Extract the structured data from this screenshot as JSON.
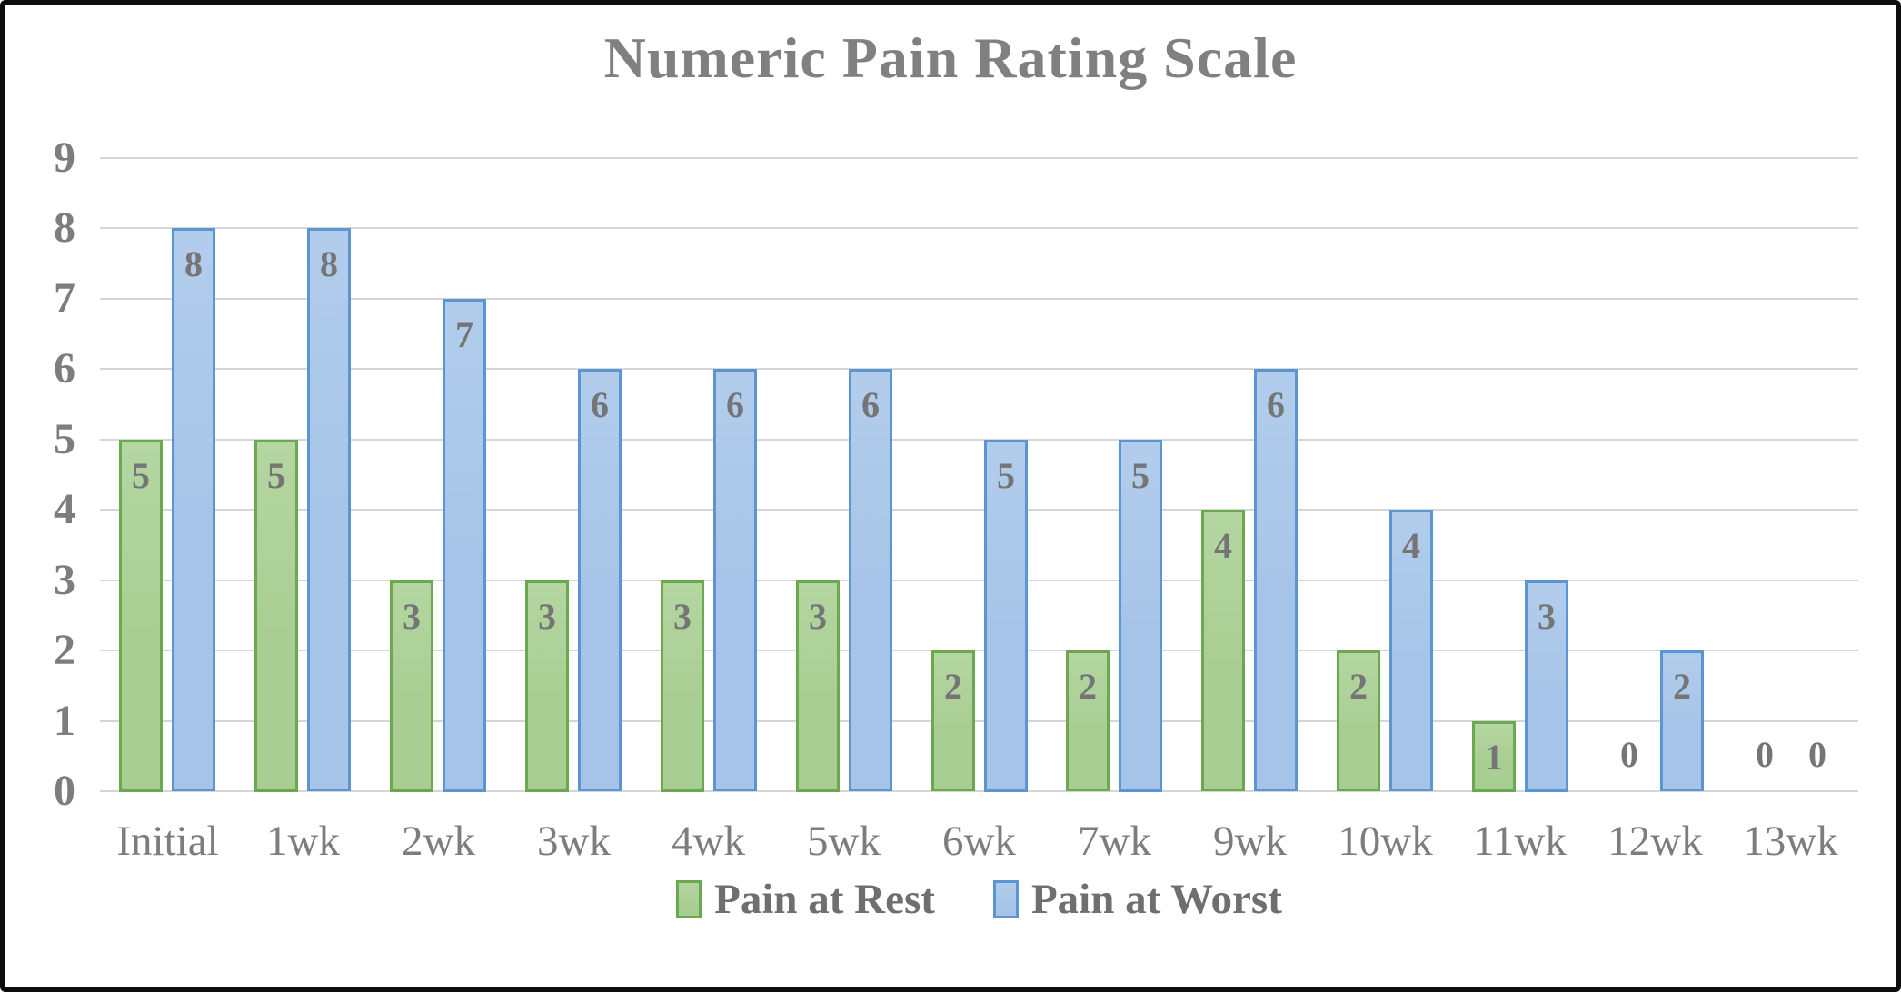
{
  "title": "Numeric Pain Rating Scale",
  "chart_data": {
    "type": "bar",
    "title": "Numeric Pain Rating Scale",
    "categories": [
      "Initial",
      "1wk",
      "2wk",
      "3wk",
      "4wk",
      "5wk",
      "6wk",
      "7wk",
      "9wk",
      "10wk",
      "11wk",
      "12wk",
      "13wk"
    ],
    "series": [
      {
        "name": "Pain at Rest",
        "fill": "#a9ce93",
        "fill_top": "#b4d6a1",
        "border": "#6ba84f",
        "values": [
          5,
          5,
          3,
          3,
          3,
          3,
          2,
          2,
          4,
          2,
          1,
          0,
          0
        ]
      },
      {
        "name": "Pain at Worst",
        "fill": "#a6c4e7",
        "fill_top": "#b2cdec",
        "border": "#5b96d2",
        "values": [
          8,
          8,
          7,
          6,
          6,
          6,
          5,
          5,
          6,
          4,
          3,
          2,
          0
        ]
      }
    ],
    "xlabel": "",
    "ylabel": "",
    "ylim": [
      0,
      9
    ],
    "yticks": [
      0,
      1,
      2,
      3,
      4,
      5,
      6,
      7,
      8,
      9
    ],
    "grid": "horizontal",
    "legend_position": "bottom",
    "data_labels": "inside-end"
  },
  "colors": {
    "frame": "#0d0d0d",
    "grid": "#d6d6d6",
    "title_text": "#808080",
    "axis_text": "#7d7d7d",
    "data_label_text": "#757575",
    "legend_text": "#6f6f6f",
    "background": "#ffffff"
  }
}
